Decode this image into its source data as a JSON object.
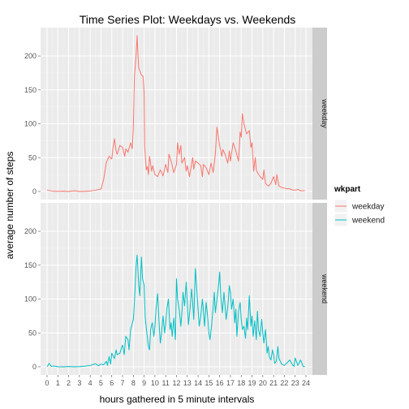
{
  "chart_data": {
    "type": "line",
    "title": "Time Series Plot: Weekdays vs. Weekends",
    "xlabel": "hours gathered in 5 minute intervals",
    "ylabel": "average number of steps",
    "x_ticks": [
      "0",
      "1",
      "2",
      "3",
      "4",
      "5",
      "6",
      "7",
      "8",
      "9",
      "10",
      "11",
      "12",
      "13",
      "14",
      "15",
      "16",
      "17",
      "18",
      "19",
      "20",
      "21",
      "22",
      "23",
      "24"
    ],
    "y_ticks": [
      "0",
      "50",
      "100",
      "150",
      "200"
    ],
    "xlim": [
      -0.6,
      24.6
    ],
    "ylim": [
      -12,
      242
    ],
    "grid": true,
    "legend": {
      "title": "wkpart",
      "position": "right"
    },
    "panels": [
      {
        "strip": "weekday",
        "series": "weekday",
        "color": "#F8766D",
        "points": [
          [
            0,
            2.3
          ],
          [
            0.5,
            0.5
          ],
          [
            1,
            0.2
          ],
          [
            1.5,
            0.4
          ],
          [
            2,
            0.0
          ],
          [
            2.5,
            1.1
          ],
          [
            3,
            0.2
          ],
          [
            3.5,
            0.1
          ],
          [
            4,
            0.8
          ],
          [
            4.5,
            2.0
          ],
          [
            5,
            3.5
          ],
          [
            5.25,
            18
          ],
          [
            5.5,
            43
          ],
          [
            5.75,
            52
          ],
          [
            6,
            48
          ],
          [
            6.1,
            63
          ],
          [
            6.25,
            78
          ],
          [
            6.4,
            60
          ],
          [
            6.5,
            55
          ],
          [
            6.75,
            68
          ],
          [
            7,
            65
          ],
          [
            7.2,
            52
          ],
          [
            7.3,
            63
          ],
          [
            7.5,
            58
          ],
          [
            7.75,
            72
          ],
          [
            7.9,
            63
          ],
          [
            8,
            95
          ],
          [
            8.1,
            170
          ],
          [
            8.25,
            200
          ],
          [
            8.35,
            230
          ],
          [
            8.4,
            212
          ],
          [
            8.5,
            182
          ],
          [
            8.75,
            172
          ],
          [
            8.9,
            170
          ],
          [
            9,
            145
          ],
          [
            9.05,
            65
          ],
          [
            9.2,
            32
          ],
          [
            9.3,
            37
          ],
          [
            9.4,
            25
          ],
          [
            9.5,
            52
          ],
          [
            9.7,
            30
          ],
          [
            9.8,
            38
          ],
          [
            10,
            25
          ],
          [
            10.25,
            22
          ],
          [
            10.5,
            32
          ],
          [
            10.75,
            23
          ],
          [
            11,
            40
          ],
          [
            11.2,
            28
          ],
          [
            11.3,
            55
          ],
          [
            11.5,
            45
          ],
          [
            11.75,
            28
          ],
          [
            12,
            40
          ],
          [
            12.1,
            72
          ],
          [
            12.25,
            55
          ],
          [
            12.4,
            68
          ],
          [
            12.5,
            42
          ],
          [
            12.75,
            50
          ],
          [
            12.9,
            30
          ],
          [
            13,
            38
          ],
          [
            13.2,
            22
          ],
          [
            13.5,
            50
          ],
          [
            13.6,
            33
          ],
          [
            13.75,
            45
          ],
          [
            14,
            42
          ],
          [
            14.25,
            38
          ],
          [
            14.4,
            22
          ],
          [
            14.5,
            40
          ],
          [
            14.75,
            35
          ],
          [
            15,
            25
          ],
          [
            15.2,
            42
          ],
          [
            15.4,
            28
          ],
          [
            15.6,
            55
          ],
          [
            15.75,
            95
          ],
          [
            16,
            68
          ],
          [
            16.2,
            52
          ],
          [
            16.3,
            62
          ],
          [
            16.5,
            55
          ],
          [
            16.75,
            42
          ],
          [
            16.9,
            60
          ],
          [
            17,
            45
          ],
          [
            17.25,
            72
          ],
          [
            17.5,
            60
          ],
          [
            17.75,
            45
          ],
          [
            17.9,
            88
          ],
          [
            18,
            80
          ],
          [
            18.1,
            115
          ],
          [
            18.25,
            100
          ],
          [
            18.5,
            85
          ],
          [
            18.75,
            90
          ],
          [
            18.9,
            65
          ],
          [
            19,
            72
          ],
          [
            19.15,
            30
          ],
          [
            19.3,
            50
          ],
          [
            19.4,
            32
          ],
          [
            19.5,
            28
          ],
          [
            19.75,
            22
          ],
          [
            20,
            18
          ],
          [
            20.1,
            32
          ],
          [
            20.25,
            12
          ],
          [
            20.5,
            8
          ],
          [
            20.75,
            12
          ],
          [
            21,
            22
          ],
          [
            21.2,
            10
          ],
          [
            21.3,
            25
          ],
          [
            21.5,
            8
          ],
          [
            21.75,
            6
          ],
          [
            22,
            5
          ],
          [
            22.25,
            4
          ],
          [
            22.5,
            4
          ],
          [
            22.75,
            2
          ],
          [
            23,
            2
          ],
          [
            23.3,
            3
          ],
          [
            23.5,
            1
          ],
          [
            23.9,
            1.2
          ]
        ]
      },
      {
        "strip": "weekend",
        "series": "weekend",
        "color": "#00BFC4",
        "points": [
          [
            0,
            0.0
          ],
          [
            0.2,
            5
          ],
          [
            0.4,
            0.5
          ],
          [
            0.6,
            1.2
          ],
          [
            1,
            0.2
          ],
          [
            1.5,
            0.0
          ],
          [
            2,
            0.5
          ],
          [
            2.5,
            0.0
          ],
          [
            3,
            0.3
          ],
          [
            3.5,
            1.0
          ],
          [
            4,
            2.0
          ],
          [
            4.5,
            4.5
          ],
          [
            4.75,
            1.5
          ],
          [
            5,
            4.0
          ],
          [
            5.25,
            3
          ],
          [
            5.5,
            8
          ],
          [
            5.6,
            2
          ],
          [
            5.75,
            15
          ],
          [
            5.9,
            4
          ],
          [
            6,
            20
          ],
          [
            6.25,
            12
          ],
          [
            6.4,
            25
          ],
          [
            6.5,
            18
          ],
          [
            6.75,
            20
          ],
          [
            6.9,
            28
          ],
          [
            7,
            32
          ],
          [
            7.15,
            18
          ],
          [
            7.3,
            45
          ],
          [
            7.5,
            40
          ],
          [
            7.6,
            25
          ],
          [
            7.75,
            55
          ],
          [
            8,
            70
          ],
          [
            8.1,
            95
          ],
          [
            8.25,
            148
          ],
          [
            8.35,
            165
          ],
          [
            8.5,
            120
          ],
          [
            8.6,
            105
          ],
          [
            8.75,
            162
          ],
          [
            8.85,
            130
          ],
          [
            9,
            120
          ],
          [
            9.1,
            72
          ],
          [
            9.25,
            50
          ],
          [
            9.4,
            30
          ],
          [
            9.5,
            25
          ],
          [
            9.6,
            55
          ],
          [
            9.75,
            65
          ],
          [
            9.9,
            45
          ],
          [
            10,
            60
          ],
          [
            10.1,
            85
          ],
          [
            10.25,
            108
          ],
          [
            10.4,
            60
          ],
          [
            10.5,
            35
          ],
          [
            10.6,
            48
          ],
          [
            10.75,
            75
          ],
          [
            10.9,
            50
          ],
          [
            11,
            65
          ],
          [
            11.1,
            85
          ],
          [
            11.25,
            100
          ],
          [
            11.4,
            55
          ],
          [
            11.5,
            65
          ],
          [
            11.6,
            45
          ],
          [
            11.75,
            72
          ],
          [
            11.9,
            40
          ],
          [
            12,
            130
          ],
          [
            12.1,
            100
          ],
          [
            12.25,
            85
          ],
          [
            12.4,
            60
          ],
          [
            12.5,
            80
          ],
          [
            12.6,
            110
          ],
          [
            12.75,
            90
          ],
          [
            12.9,
            125
          ],
          [
            13,
            95
          ],
          [
            13.1,
            62
          ],
          [
            13.25,
            85
          ],
          [
            13.4,
            115
          ],
          [
            13.5,
            95
          ],
          [
            13.6,
            70
          ],
          [
            13.75,
            145
          ],
          [
            13.9,
            110
          ],
          [
            14,
            85
          ],
          [
            14.1,
            60
          ],
          [
            14.25,
            75
          ],
          [
            14.4,
            100
          ],
          [
            14.5,
            82
          ],
          [
            14.6,
            60
          ],
          [
            14.75,
            95
          ],
          [
            14.9,
            72
          ],
          [
            15,
            50
          ],
          [
            15.1,
            40
          ],
          [
            15.25,
            60
          ],
          [
            15.4,
            88
          ],
          [
            15.5,
            110
          ],
          [
            15.6,
            80
          ],
          [
            15.75,
            100
          ],
          [
            15.9,
            120
          ],
          [
            16,
            140
          ],
          [
            16.1,
            105
          ],
          [
            16.25,
            80
          ],
          [
            16.4,
            110
          ],
          [
            16.5,
            90
          ],
          [
            16.6,
            70
          ],
          [
            16.75,
            88
          ],
          [
            16.9,
            120
          ],
          [
            17,
            110
          ],
          [
            17.1,
            85
          ],
          [
            17.25,
            100
          ],
          [
            17.4,
            65
          ],
          [
            17.5,
            85
          ],
          [
            17.6,
            45
          ],
          [
            17.75,
            82
          ],
          [
            17.9,
            95
          ],
          [
            18,
            70
          ],
          [
            18.1,
            55
          ],
          [
            18.25,
            60
          ],
          [
            18.4,
            42
          ],
          [
            18.5,
            72
          ],
          [
            18.6,
            55
          ],
          [
            18.75,
            105
          ],
          [
            18.9,
            60
          ],
          [
            19,
            75
          ],
          [
            19.1,
            45
          ],
          [
            19.25,
            68
          ],
          [
            19.4,
            40
          ],
          [
            19.5,
            82
          ],
          [
            19.6,
            55
          ],
          [
            19.75,
            45
          ],
          [
            19.9,
            70
          ],
          [
            20,
            50
          ],
          [
            20.1,
            35
          ],
          [
            20.25,
            55
          ],
          [
            20.4,
            20
          ],
          [
            20.5,
            30
          ],
          [
            20.6,
            15
          ],
          [
            20.75,
            10
          ],
          [
            20.9,
            25
          ],
          [
            21,
            18
          ],
          [
            21.1,
            5
          ],
          [
            21.25,
            8
          ],
          [
            21.4,
            30
          ],
          [
            21.5,
            12
          ],
          [
            21.75,
            4
          ],
          [
            22,
            2
          ],
          [
            22.25,
            6
          ],
          [
            22.5,
            10
          ],
          [
            22.75,
            3
          ],
          [
            22.9,
            0.5
          ],
          [
            23,
            13
          ],
          [
            23.25,
            2
          ],
          [
            23.5,
            10
          ],
          [
            23.75,
            0.3
          ],
          [
            23.9,
            0.5
          ]
        ]
      }
    ]
  }
}
